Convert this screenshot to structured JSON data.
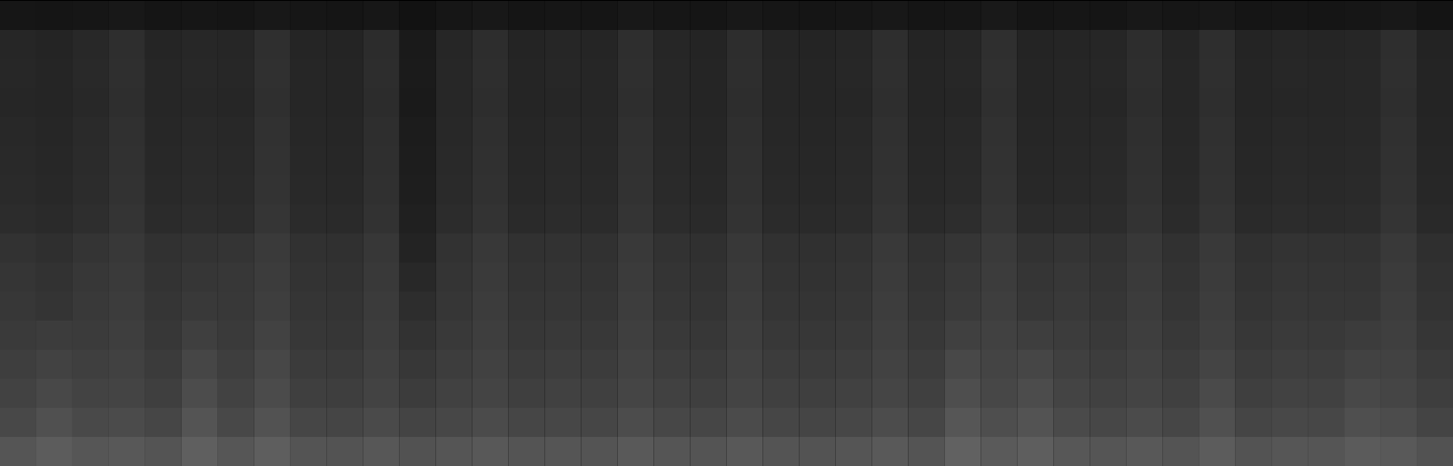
{
  "chart_data": {
    "type": "heatmap",
    "tick_labels": false,
    "values": [
      [
        22,
        21,
        22,
        24,
        21,
        22,
        21,
        24,
        22,
        21,
        23,
        18,
        22,
        24,
        21,
        22,
        21,
        24,
        22,
        21,
        24,
        22,
        21,
        22,
        24,
        21,
        22,
        25,
        21,
        22,
        21,
        24,
        22,
        24,
        21,
        22,
        21,
        22,
        24,
        20
      ],
      [
        38,
        36,
        40,
        46,
        37,
        39,
        38,
        47,
        37,
        36,
        44,
        26,
        38,
        45,
        36,
        38,
        37,
        46,
        38,
        36,
        45,
        37,
        36,
        38,
        46,
        36,
        38,
        47,
        36,
        37,
        38,
        45,
        37,
        46,
        36,
        38,
        37,
        38,
        46,
        35
      ],
      [
        39,
        37,
        41,
        47,
        38,
        40,
        39,
        48,
        38,
        37,
        45,
        27,
        39,
        46,
        37,
        39,
        38,
        47,
        39,
        37,
        46,
        38,
        37,
        39,
        47,
        37,
        39,
        48,
        37,
        38,
        39,
        46,
        38,
        47,
        37,
        39,
        38,
        39,
        47,
        36
      ],
      [
        38,
        37,
        40,
        46,
        38,
        39,
        38,
        47,
        38,
        37,
        44,
        26,
        39,
        45,
        37,
        38,
        38,
        46,
        39,
        37,
        45,
        38,
        37,
        38,
        46,
        37,
        38,
        47,
        37,
        38,
        38,
        45,
        38,
        46,
        37,
        38,
        38,
        39,
        46,
        36
      ],
      [
        40,
        38,
        42,
        48,
        39,
        41,
        40,
        49,
        39,
        38,
        46,
        28,
        40,
        47,
        38,
        40,
        39,
        48,
        40,
        38,
        47,
        39,
        38,
        40,
        48,
        38,
        40,
        49,
        38,
        39,
        40,
        47,
        39,
        48,
        38,
        40,
        39,
        40,
        48,
        37
      ],
      [
        41,
        39,
        43,
        49,
        40,
        42,
        41,
        50,
        40,
        39,
        47,
        29,
        41,
        48,
        39,
        41,
        40,
        49,
        41,
        39,
        48,
        40,
        39,
        41,
        49,
        39,
        41,
        50,
        39,
        40,
        41,
        48,
        40,
        49,
        39,
        41,
        40,
        41,
        49,
        38
      ],
      [
        42,
        40,
        44,
        50,
        41,
        43,
        42,
        51,
        41,
        40,
        48,
        30,
        42,
        49,
        40,
        42,
        41,
        50,
        42,
        40,
        49,
        41,
        40,
        42,
        50,
        40,
        42,
        51,
        40,
        41,
        42,
        49,
        41,
        50,
        40,
        42,
        41,
        42,
        50,
        39
      ],
      [
        44,
        42,
        46,
        52,
        43,
        45,
        44,
        53,
        43,
        42,
        50,
        32,
        44,
        51,
        42,
        44,
        43,
        52,
        44,
        42,
        51,
        43,
        42,
        44,
        52,
        42,
        45,
        53,
        43,
        44,
        44,
        51,
        43,
        52,
        42,
        44,
        43,
        44,
        52,
        41
      ],
      [
        50,
        47,
        52,
        56,
        49,
        51,
        52,
        58,
        49,
        48,
        55,
        35,
        50,
        56,
        49,
        50,
        49,
        57,
        50,
        48,
        56,
        49,
        48,
        50,
        57,
        49,
        53,
        58,
        50,
        52,
        50,
        56,
        49,
        57,
        48,
        51,
        50,
        50,
        57,
        47
      ],
      [
        53,
        50,
        55,
        58,
        51,
        54,
        55,
        60,
        51,
        50,
        57,
        40,
        52,
        58,
        51,
        52,
        51,
        59,
        52,
        50,
        58,
        51,
        50,
        52,
        59,
        51,
        56,
        60,
        53,
        55,
        52,
        58,
        51,
        59,
        50,
        53,
        52,
        52,
        59,
        49
      ],
      [
        55,
        52,
        57,
        60,
        53,
        57,
        56,
        62,
        53,
        52,
        59,
        45,
        54,
        60,
        53,
        54,
        53,
        61,
        54,
        52,
        60,
        53,
        52,
        54,
        61,
        53,
        58,
        62,
        55,
        57,
        54,
        60,
        53,
        61,
        52,
        55,
        54,
        54,
        61,
        51
      ],
      [
        58,
        60,
        59,
        62,
        55,
        63,
        58,
        66,
        55,
        54,
        61,
        50,
        57,
        62,
        55,
        57,
        56,
        63,
        57,
        55,
        62,
        56,
        55,
        57,
        63,
        56,
        64,
        65,
        62,
        60,
        57,
        62,
        56,
        63,
        55,
        58,
        57,
        60,
        63,
        54
      ],
      [
        62,
        66,
        63,
        65,
        59,
        70,
        62,
        71,
        59,
        58,
        64,
        55,
        61,
        65,
        59,
        61,
        60,
        66,
        61,
        59,
        65,
        60,
        59,
        61,
        66,
        60,
        72,
        68,
        70,
        64,
        61,
        65,
        60,
        68,
        59,
        62,
        61,
        66,
        66,
        58
      ],
      [
        66,
        72,
        67,
        68,
        63,
        76,
        66,
        75,
        63,
        62,
        67,
        60,
        65,
        68,
        63,
        65,
        64,
        69,
        65,
        63,
        68,
        64,
        63,
        65,
        69,
        64,
        78,
        71,
        76,
        68,
        65,
        68,
        64,
        74,
        63,
        66,
        65,
        72,
        69,
        62
      ],
      [
        72,
        80,
        73,
        75,
        70,
        84,
        72,
        82,
        70,
        69,
        74,
        68,
        71,
        75,
        70,
        71,
        70,
        76,
        71,
        70,
        75,
        70,
        69,
        71,
        76,
        70,
        86,
        78,
        83,
        74,
        71,
        75,
        70,
        80,
        69,
        72,
        71,
        79,
        76,
        68
      ],
      [
        85,
        92,
        86,
        88,
        84,
        95,
        86,
        94,
        84,
        83,
        87,
        82,
        85,
        88,
        84,
        85,
        84,
        89,
        85,
        84,
        88,
        84,
        83,
        85,
        89,
        84,
        97,
        90,
        94,
        87,
        85,
        88,
        84,
        92,
        83,
        86,
        85,
        91,
        89,
        82
      ]
    ]
  }
}
